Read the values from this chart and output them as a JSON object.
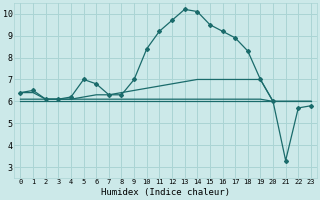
{
  "xlabel": "Humidex (Indice chaleur)",
  "xlim": [
    -0.5,
    23.5
  ],
  "ylim": [
    2.5,
    10.5
  ],
  "background_color": "#cce9e9",
  "grid_color": "#aad4d4",
  "line_color": "#1a6b6b",
  "xticks": [
    0,
    1,
    2,
    3,
    4,
    5,
    6,
    7,
    8,
    9,
    10,
    11,
    12,
    13,
    14,
    15,
    16,
    17,
    18,
    19,
    20,
    21,
    22,
    23
  ],
  "yticks": [
    3,
    4,
    5,
    6,
    7,
    8,
    9,
    10
  ],
  "series_main": [
    6.4,
    6.5,
    6.1,
    6.1,
    6.2,
    7.0,
    6.8,
    6.3,
    6.3,
    7.0,
    8.4,
    9.2,
    9.7,
    10.2,
    10.1,
    9.5,
    9.2,
    8.9,
    8.3,
    7.0,
    6.0,
    3.3,
    5.7,
    5.8
  ],
  "series_diag": [
    6.4,
    6.4,
    6.1,
    6.1,
    6.1,
    6.2,
    6.3,
    6.3,
    6.4,
    6.5,
    6.6,
    6.7,
    6.8,
    6.9,
    7.0,
    7.0,
    7.0,
    7.0,
    7.0,
    7.0,
    6.0,
    6.0,
    6.0,
    6.0
  ],
  "series_flat1": [
    6.0,
    6.0,
    6.0,
    6.0,
    6.0,
    6.0,
    6.0,
    6.0,
    6.0,
    6.0,
    6.0,
    6.0,
    6.0,
    6.0,
    6.0,
    6.0,
    6.0,
    6.0,
    6.0,
    6.0,
    6.0,
    6.0,
    6.0,
    6.0
  ],
  "series_flat2": [
    6.1,
    6.1,
    6.1,
    6.1,
    6.1,
    6.1,
    6.1,
    6.1,
    6.1,
    6.1,
    6.1,
    6.1,
    6.1,
    6.1,
    6.1,
    6.1,
    6.1,
    6.1,
    6.1,
    6.1,
    6.0,
    6.0,
    6.0,
    6.0
  ]
}
